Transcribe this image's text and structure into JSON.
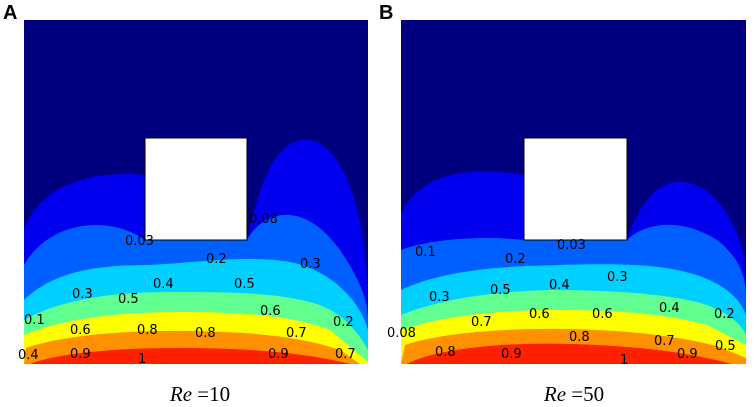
{
  "panels": [
    {
      "letter": "A",
      "caption": {
        "symbol": "Re",
        "equals": "=",
        "value": "10"
      },
      "contour_labels": [
        "0.03",
        "0.08",
        "0.2",
        "0.3",
        "0.4",
        "0.5",
        "0.3",
        "0.5",
        "0.6",
        "0.1",
        "0.6",
        "0.8",
        "0.8",
        "0.7",
        "0.2",
        "0.4",
        "0.9",
        "1",
        "0.9",
        "0.7"
      ]
    },
    {
      "letter": "B",
      "caption": {
        "symbol": "Re",
        "equals": "=",
        "value": "50"
      },
      "contour_labels": [
        "0.03",
        "0.1",
        "0.2",
        "0.3",
        "0.4",
        "0.5",
        "0.3",
        "0.6",
        "0.6",
        "0.4",
        "0.7",
        "0.8",
        "0.7",
        "0.2",
        "0.08",
        "0.8",
        "0.9",
        "1",
        "0.9",
        "0.5"
      ]
    }
  ],
  "colormap": [
    "#00007f",
    "#0000ff",
    "#0080ff",
    "#00ffff",
    "#80ff80",
    "#ffff00",
    "#ff8000",
    "#ff0000",
    "#7f0000"
  ],
  "obstacle_color": "#ffffff"
}
